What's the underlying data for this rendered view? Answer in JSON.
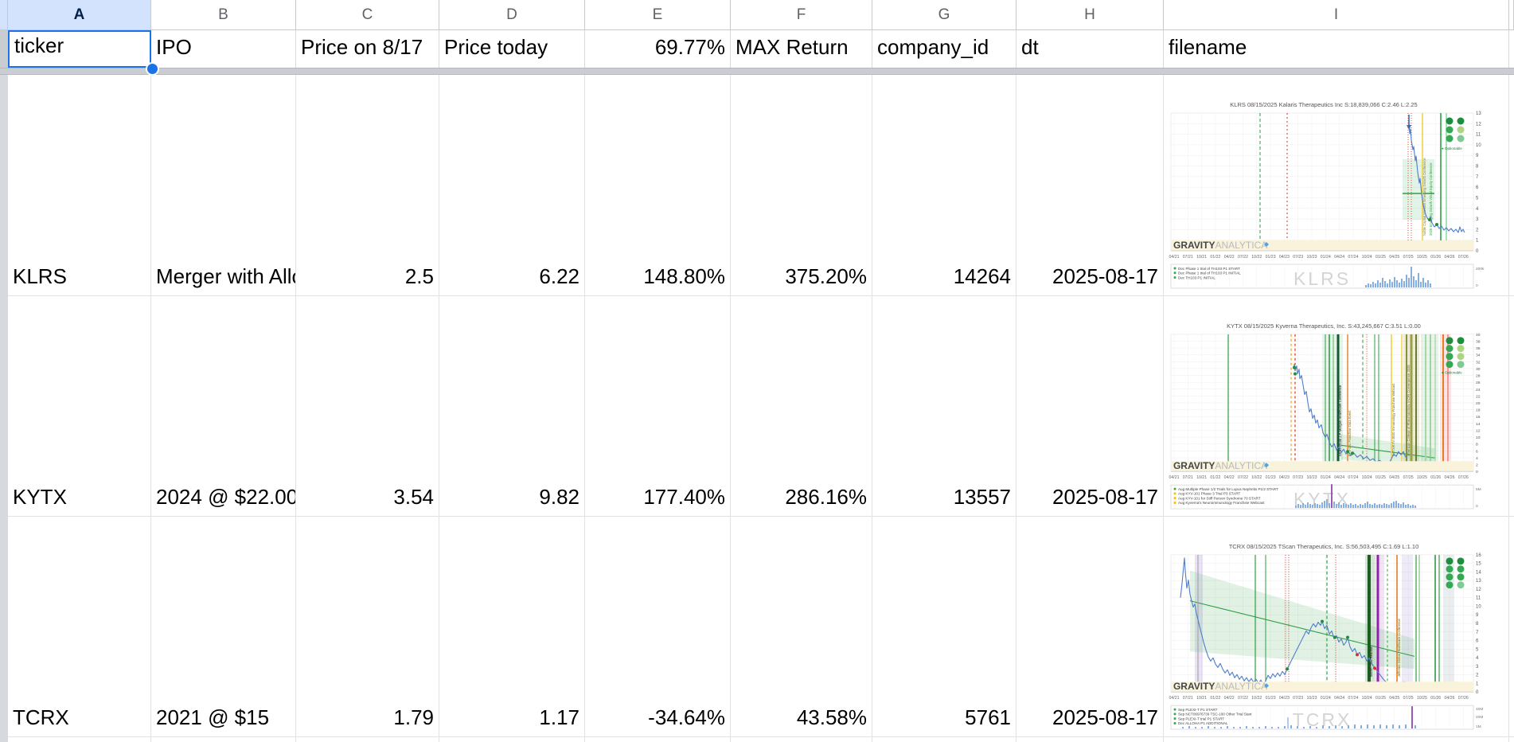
{
  "colors": {
    "selection_blue": "#1a73e8",
    "selected_column_bg": "#d3e3fd",
    "price_line_blue": "#4f7cc9",
    "event_green": "#2e9e44",
    "event_red": "#c0392b",
    "event_yellow": "#f4d03f",
    "volume_purple": "#9b59b6",
    "brand_band_cream": "#faf3dc"
  },
  "sheet": {
    "column_letters": [
      "A",
      "B",
      "C",
      "D",
      "E",
      "F",
      "G",
      "H",
      "I"
    ],
    "selected_column": "A",
    "selected_cell": "A1",
    "headers": [
      "ticker",
      "IPO",
      "Price on 8/17",
      "Price today",
      "69.77%",
      "MAX Return",
      "company_id",
      "dt",
      "filename"
    ],
    "rows": [
      {
        "ticker": "KLRS",
        "ipo": "Merger with Allov",
        "price_817": "2.5",
        "price_today": "6.22",
        "return_pct": "148.80%",
        "max_return": "375.20%",
        "company_id": "14264",
        "dt": "2025-08-17"
      },
      {
        "ticker": "KYTX",
        "ipo": "2024 @ $22.00",
        "price_817": "3.54",
        "price_today": "9.82",
        "return_pct": "177.40%",
        "max_return": "286.16%",
        "company_id": "13557",
        "dt": "2025-08-17"
      },
      {
        "ticker": "TCRX",
        "ipo": "2021 @ $15",
        "price_817": "1.79",
        "price_today": "1.17",
        "return_pct": "-34.64%",
        "max_return": "43.58%",
        "company_id": "5761",
        "dt": "2025-08-17"
      }
    ]
  },
  "chart_dates": [
    "04/21",
    "07/21",
    "10/21",
    "01/22",
    "04/22",
    "07/22",
    "10/22",
    "01/23",
    "04/23",
    "07/23",
    "10/23",
    "01/24",
    "04/24",
    "07/24",
    "10/24",
    "01/25",
    "04/25",
    "07/25",
    "10/25",
    "01/26",
    "04/26",
    "07/26"
  ],
  "charts": [
    {
      "ticker": "KLRS",
      "title": "KLRS 08/15/2025 Kalaris Therapeutics Inc S:18,839,066 C:2.46 L:2.25",
      "watermark": "KLRS",
      "optionable": "Optionable",
      "brand_bold": "GRAVITY",
      "brand_light": "ANALYTICA",
      "y_ticks": [
        "13",
        "12",
        "11",
        "10",
        "9",
        "8",
        "7",
        "6",
        "5",
        "4",
        "3",
        "2",
        "1",
        "0"
      ],
      "vol_ticks": [
        "200k",
        "0"
      ],
      "legend": [
        {
          "color": "#34a853",
          "text": "Dec Phase 1 trial of TH103 P1 START"
        },
        {
          "color": "#34a853",
          "text": "Dec Phase 1 trial of TH103 P1 INITIAL"
        },
        {
          "color": "#34a853",
          "text": "Dec TH103 P1 INITIAL"
        }
      ],
      "band_labels": [
        "Noble Capital Markets Emerging Growth Conference",
        "2025 Emerging Growth Virtual Equity Conference"
      ]
    },
    {
      "ticker": "KYTX",
      "title": "KYTX 08/15/2025 Kyverna Therapeutics, Inc. S:43,245,667 C:3.51 L:0.00",
      "watermark": "KYTX",
      "optionable": "Optionable",
      "brand_bold": "GRAVITY",
      "brand_light": "ANALYTICA",
      "y_ticks": [
        "40",
        "38",
        "36",
        "34",
        "32",
        "30",
        "28",
        "26",
        "24",
        "22",
        "20",
        "18",
        "16",
        "14",
        "12",
        "10",
        "8",
        "6",
        "4",
        "2",
        "0"
      ],
      "vol_ticks": [
        "5M",
        "0"
      ],
      "legend": [
        {
          "color": "#34a853",
          "text": "Aug Multiple Phase 1/2 Trials for Lupus Nephritis P1/2 START"
        },
        {
          "color": "#fbbc04",
          "text": "Aug KYV-101 Phase 3 Trial P3 START"
        },
        {
          "color": "#fbbc04",
          "text": "Aug KYV-101 for Stiff Person Syndrome 70 START"
        },
        {
          "color": "#fbbc04",
          "text": "Aug Kyverna's Neuroimmunology Franchise Webcast"
        }
      ],
      "band_labels": [
        "43rd Annual J.P. Morgan Healthcare Conference",
        "KYV-101 Franchise Data Event",
        "KYTX/KYV 8020 Immunology Franchise Webcast",
        "American College of Rheumatology (ACR) Convergence 2025"
      ]
    },
    {
      "ticker": "TCRX",
      "title": "TCRX 08/15/2025 TScan Therapeutics, Inc. S:56,503,495 C:1.69 L:1.10",
      "watermark": "TCRX",
      "optionable": "",
      "brand_bold": "GRAVITY",
      "brand_light": "ANALYTICA",
      "y_ticks": [
        "16",
        "15",
        "14",
        "13",
        "12",
        "11",
        "10",
        "9",
        "8",
        "7",
        "6",
        "5",
        "4",
        "3",
        "2",
        "1",
        "0"
      ],
      "vol_ticks": [
        "40M",
        "20M",
        "1M"
      ],
      "legend": [
        {
          "color": "#34a853",
          "text": "Sep PLEXI-T P1 START"
        },
        {
          "color": "#34a853",
          "text": "Sep NCT06976739 TSC-100 Other Trial Start"
        },
        {
          "color": "#34a853",
          "text": "Sep PLEXI-T trial P1 START"
        },
        {
          "color": "#34a853",
          "text": "Dec ALLOHA P1 ADDITIONAL"
        }
      ],
      "band_labels": [
        "Interim Trial Readout",
        "Jefferies Global Healthcare Conference"
      ]
    }
  ]
}
